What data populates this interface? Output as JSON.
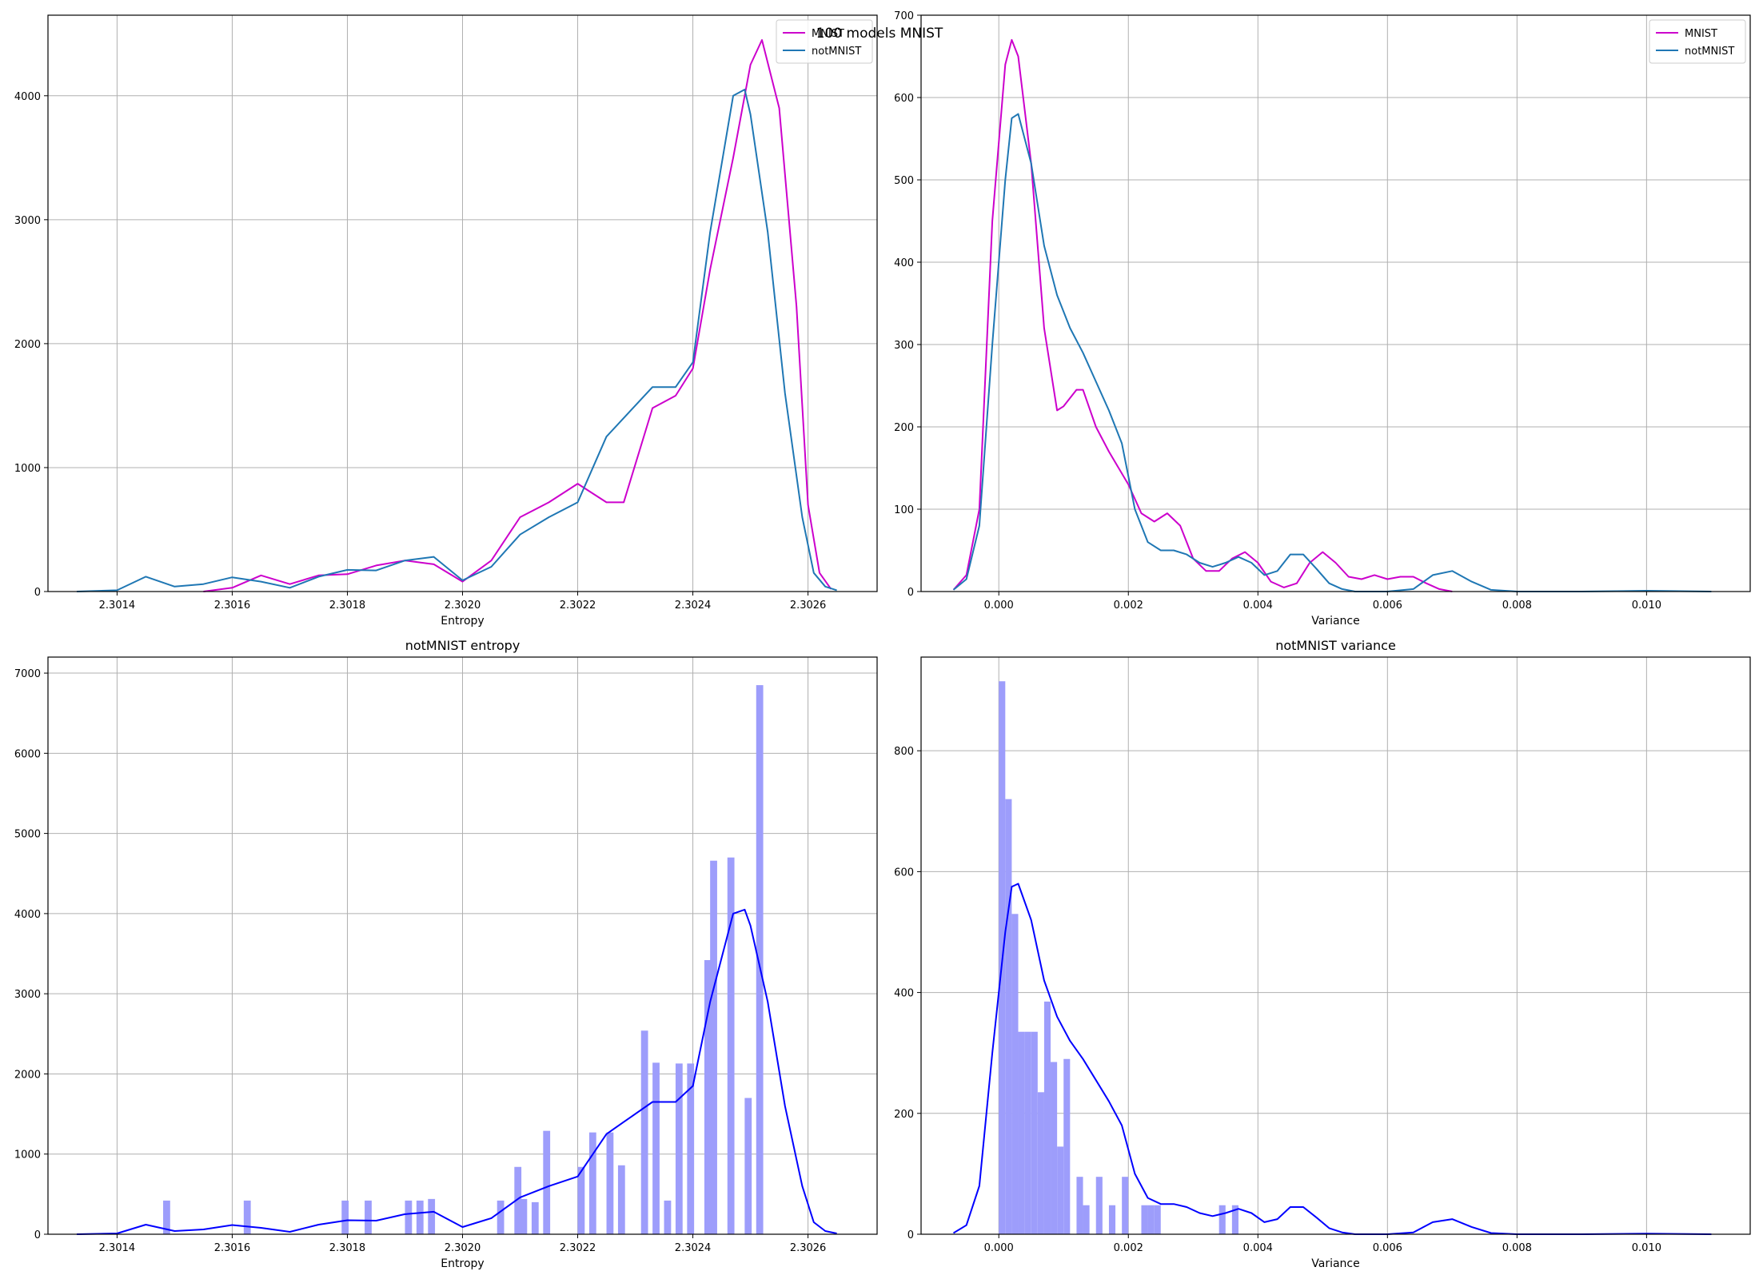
{
  "suptitle": "100 models MNIST",
  "colors": {
    "mnist_line": "#cc00cc",
    "notmnist_line": "#1f77b4",
    "kde_line": "#0000ff",
    "hist_fill": "#9d9dfb",
    "grid": "#b0b0b0"
  },
  "chart_data": [
    {
      "id": "entropy_kde",
      "type": "line",
      "title": "",
      "xlabel": "Entropy",
      "ylabel": "",
      "xlim": [
        2.30128,
        2.30272
      ],
      "ylim": [
        0,
        4650
      ],
      "xticks": [
        2.3014,
        2.3016,
        2.3018,
        2.302,
        2.3022,
        2.3024,
        2.3026
      ],
      "xtick_labels": [
        "2.3014",
        "2.3016",
        "2.3018",
        "2.3020",
        "2.3022",
        "2.3024",
        "2.3026"
      ],
      "yticks": [
        0,
        1000,
        2000,
        3000,
        4000
      ],
      "ytick_labels": [
        "0",
        "1000",
        "2000",
        "3000",
        "4000"
      ],
      "grid": true,
      "legend": "top-right",
      "series": [
        {
          "name": "MNIST",
          "color": "#cc00cc",
          "x": [
            2.30155,
            2.3016,
            2.30165,
            2.3017,
            2.30175,
            2.3018,
            2.30185,
            2.3019,
            2.30195,
            2.302,
            2.30205,
            2.3021,
            2.30215,
            2.3022,
            2.30225,
            2.30228,
            2.30233,
            2.30237,
            2.3024,
            2.30243,
            2.30247,
            2.3025,
            2.30252,
            2.30255,
            2.30258,
            2.3026,
            2.30262,
            2.30264
          ],
          "y": [
            0,
            30,
            130,
            60,
            130,
            140,
            210,
            250,
            220,
            80,
            250,
            600,
            720,
            870,
            720,
            720,
            1480,
            1580,
            1800,
            2600,
            3500,
            4250,
            4450,
            3900,
            2300,
            700,
            150,
            20
          ]
        },
        {
          "name": "notMNIST",
          "color": "#1f77b4",
          "x": [
            2.30133,
            2.3014,
            2.30145,
            2.3015,
            2.30155,
            2.3016,
            2.30165,
            2.3017,
            2.30175,
            2.3018,
            2.30185,
            2.3019,
            2.30195,
            2.302,
            2.30205,
            2.3021,
            2.30215,
            2.3022,
            2.30225,
            2.30228,
            2.30233,
            2.30237,
            2.3024,
            2.30243,
            2.30247,
            2.30249,
            2.3025,
            2.30253,
            2.30256,
            2.30259,
            2.30261,
            2.30263,
            2.30265
          ],
          "y": [
            0,
            10,
            120,
            40,
            60,
            115,
            80,
            30,
            120,
            175,
            170,
            250,
            280,
            90,
            200,
            460,
            600,
            720,
            1250,
            1400,
            1650,
            1650,
            1850,
            2900,
            4000,
            4050,
            3850,
            2900,
            1600,
            600,
            150,
            40,
            10
          ]
        }
      ]
    },
    {
      "id": "variance_kde",
      "type": "line",
      "title": "",
      "xlabel": "Variance",
      "ylabel": "",
      "xlim": [
        -0.0012,
        0.0116
      ],
      "ylim": [
        0,
        700
      ],
      "xticks": [
        0,
        0.002,
        0.004,
        0.006,
        0.008,
        0.01
      ],
      "xtick_labels": [
        "0.000",
        "0.002",
        "0.004",
        "0.006",
        "0.008",
        "0.010"
      ],
      "yticks": [
        0,
        100,
        200,
        300,
        400,
        500,
        600,
        700
      ],
      "ytick_labels": [
        "0",
        "100",
        "200",
        "300",
        "400",
        "500",
        "600",
        "700"
      ],
      "grid": true,
      "legend": "top-right",
      "series": [
        {
          "name": "MNIST",
          "color": "#cc00cc",
          "x": [
            -0.0007,
            -0.0005,
            -0.0003,
            -0.0001,
            0.0001,
            0.0002,
            0.0003,
            0.0005,
            0.0007,
            0.0009,
            0.001,
            0.0012,
            0.0013,
            0.0015,
            0.0017,
            0.002,
            0.0022,
            0.0024,
            0.0026,
            0.0028,
            0.003,
            0.0032,
            0.0034,
            0.0036,
            0.0038,
            0.004,
            0.0042,
            0.0044,
            0.0046,
            0.0048,
            0.005,
            0.0052,
            0.0054,
            0.0056,
            0.0058,
            0.006,
            0.0062,
            0.0064,
            0.0066,
            0.0068,
            0.007
          ],
          "y": [
            2,
            20,
            100,
            450,
            640,
            670,
            650,
            520,
            320,
            220,
            225,
            245,
            245,
            200,
            170,
            130,
            95,
            85,
            95,
            80,
            40,
            25,
            25,
            40,
            48,
            35,
            12,
            5,
            10,
            35,
            48,
            35,
            18,
            15,
            20,
            15,
            18,
            18,
            10,
            3,
            0
          ]
        },
        {
          "name": "notMNIST",
          "color": "#1f77b4",
          "x": [
            -0.0007,
            -0.0005,
            -0.0003,
            -0.0001,
            0.0001,
            0.0002,
            0.0003,
            0.0005,
            0.0007,
            0.0009,
            0.0011,
            0.0013,
            0.0015,
            0.0017,
            0.0019,
            0.0021,
            0.0023,
            0.0025,
            0.0027,
            0.0029,
            0.0031,
            0.0033,
            0.0035,
            0.0037,
            0.0039,
            0.0041,
            0.0043,
            0.0045,
            0.0047,
            0.0049,
            0.0051,
            0.0053,
            0.0055,
            0.006,
            0.0064,
            0.0067,
            0.007,
            0.0073,
            0.0076,
            0.008,
            0.009,
            0.01,
            0.011
          ],
          "y": [
            2,
            15,
            80,
            300,
            500,
            575,
            580,
            520,
            420,
            360,
            320,
            290,
            255,
            220,
            180,
            100,
            60,
            50,
            50,
            45,
            35,
            30,
            35,
            42,
            35,
            20,
            25,
            45,
            45,
            28,
            10,
            3,
            0,
            0,
            3,
            20,
            25,
            12,
            2,
            0,
            0,
            1,
            0
          ]
        }
      ]
    },
    {
      "id": "notmnist_entropy",
      "type": "bar",
      "title": "notMNIST entropy",
      "xlabel": "Entropy",
      "ylabel": "",
      "xlim": [
        2.30128,
        2.30272
      ],
      "ylim": [
        0,
        7200
      ],
      "xticks": [
        2.3014,
        2.3016,
        2.3018,
        2.302,
        2.3022,
        2.3024,
        2.3026
      ],
      "xtick_labels": [
        "2.3014",
        "2.3016",
        "2.3018",
        "2.3020",
        "2.3022",
        "2.3024",
        "2.3026"
      ],
      "yticks": [
        0,
        1000,
        2000,
        3000,
        4000,
        5000,
        6000,
        7000
      ],
      "ytick_labels": [
        "0",
        "1000",
        "2000",
        "3000",
        "4000",
        "5000",
        "6000",
        "7000"
      ],
      "grid": true,
      "bin_width": 1.22e-05,
      "bins": [
        {
          "x": 2.30148,
          "value": 420
        },
        {
          "x": 2.30162,
          "value": 420
        },
        {
          "x": 2.30179,
          "value": 420
        },
        {
          "x": 2.30183,
          "value": 420
        },
        {
          "x": 2.3019,
          "value": 420
        },
        {
          "x": 2.30192,
          "value": 420
        },
        {
          "x": 2.30194,
          "value": 440
        },
        {
          "x": 2.30206,
          "value": 420
        },
        {
          "x": 2.30209,
          "value": 840
        },
        {
          "x": 2.3021,
          "value": 440
        },
        {
          "x": 2.30212,
          "value": 400
        },
        {
          "x": 2.30214,
          "value": 1290
        },
        {
          "x": 2.3022,
          "value": 840
        },
        {
          "x": 2.30222,
          "value": 1270
        },
        {
          "x": 2.30225,
          "value": 1270
        },
        {
          "x": 2.30227,
          "value": 860
        },
        {
          "x": 2.30231,
          "value": 2540
        },
        {
          "x": 2.30233,
          "value": 2140
        },
        {
          "x": 2.30235,
          "value": 420
        },
        {
          "x": 2.30237,
          "value": 2130
        },
        {
          "x": 2.30239,
          "value": 2130
        },
        {
          "x": 2.30242,
          "value": 3420
        },
        {
          "x": 2.30243,
          "value": 4660
        },
        {
          "x": 2.30246,
          "value": 4700
        },
        {
          "x": 2.30249,
          "value": 1700
        },
        {
          "x": 2.30251,
          "value": 6850
        }
      ],
      "series": [
        {
          "name": "",
          "color": "#0000ff",
          "x": [
            2.30133,
            2.3014,
            2.30145,
            2.3015,
            2.30155,
            2.3016,
            2.30165,
            2.3017,
            2.30175,
            2.3018,
            2.30185,
            2.3019,
            2.30195,
            2.302,
            2.30205,
            2.3021,
            2.30215,
            2.3022,
            2.30225,
            2.30228,
            2.30233,
            2.30237,
            2.3024,
            2.30243,
            2.30247,
            2.30249,
            2.3025,
            2.30253,
            2.30256,
            2.30259,
            2.30261,
            2.30263,
            2.30265
          ],
          "y": [
            0,
            10,
            120,
            40,
            60,
            115,
            80,
            30,
            120,
            175,
            170,
            250,
            280,
            90,
            200,
            460,
            600,
            720,
            1250,
            1400,
            1650,
            1650,
            1850,
            2900,
            4000,
            4050,
            3850,
            2900,
            1600,
            600,
            150,
            40,
            10
          ]
        }
      ]
    },
    {
      "id": "notmnist_variance",
      "type": "bar",
      "title": "notMNIST variance",
      "xlabel": "Variance",
      "ylabel": "",
      "xlim": [
        -0.0012,
        0.0116
      ],
      "ylim": [
        0,
        955
      ],
      "xticks": [
        0,
        0.002,
        0.004,
        0.006,
        0.008,
        0.01
      ],
      "xtick_labels": [
        "0.000",
        "0.002",
        "0.004",
        "0.006",
        "0.008",
        "0.010"
      ],
      "yticks": [
        0,
        200,
        400,
        600,
        800
      ],
      "ytick_labels": [
        "0",
        "200",
        "400",
        "600",
        "800"
      ],
      "grid": true,
      "bin_width": 0.0001,
      "bins": [
        {
          "x": 0.0,
          "value": 915
        },
        {
          "x": 0.0001,
          "value": 720
        },
        {
          "x": 0.0002,
          "value": 530
        },
        {
          "x": 0.0003,
          "value": 335
        },
        {
          "x": 0.0004,
          "value": 335
        },
        {
          "x": 0.0005,
          "value": 335
        },
        {
          "x": 0.0006,
          "value": 235
        },
        {
          "x": 0.0007,
          "value": 385
        },
        {
          "x": 0.0008,
          "value": 285
        },
        {
          "x": 0.0009,
          "value": 145
        },
        {
          "x": 0.001,
          "value": 290
        },
        {
          "x": 0.0011,
          "value": 0
        },
        {
          "x": 0.0012,
          "value": 95
        },
        {
          "x": 0.0013,
          "value": 48
        },
        {
          "x": 0.0014,
          "value": 0
        },
        {
          "x": 0.0015,
          "value": 95
        },
        {
          "x": 0.0016,
          "value": 0
        },
        {
          "x": 0.0017,
          "value": 48
        },
        {
          "x": 0.0018,
          "value": 0
        },
        {
          "x": 0.0019,
          "value": 95
        },
        {
          "x": 0.002,
          "value": 0
        },
        {
          "x": 0.0021,
          "value": 0
        },
        {
          "x": 0.0022,
          "value": 48
        },
        {
          "x": 0.0023,
          "value": 48
        },
        {
          "x": 0.0024,
          "value": 48
        },
        {
          "x": 0.0034,
          "value": 48
        },
        {
          "x": 0.0036,
          "value": 48
        }
      ],
      "series": [
        {
          "name": "",
          "color": "#0000ff",
          "x": [
            -0.0007,
            -0.0005,
            -0.0003,
            -0.0001,
            0.0001,
            0.0002,
            0.0003,
            0.0005,
            0.0007,
            0.0009,
            0.0011,
            0.0013,
            0.0015,
            0.0017,
            0.0019,
            0.0021,
            0.0023,
            0.0025,
            0.0027,
            0.0029,
            0.0031,
            0.0033,
            0.0035,
            0.0037,
            0.0039,
            0.0041,
            0.0043,
            0.0045,
            0.0047,
            0.0049,
            0.0051,
            0.0053,
            0.0055,
            0.006,
            0.0064,
            0.0067,
            0.007,
            0.0073,
            0.0076,
            0.008,
            0.009,
            0.01,
            0.011
          ],
          "y": [
            2,
            15,
            80,
            300,
            500,
            575,
            580,
            520,
            420,
            360,
            320,
            290,
            255,
            220,
            180,
            100,
            60,
            50,
            50,
            45,
            35,
            30,
            35,
            42,
            35,
            20,
            25,
            45,
            45,
            28,
            10,
            3,
            0,
            0,
            3,
            20,
            25,
            12,
            2,
            0,
            0,
            1,
            0
          ]
        }
      ]
    }
  ]
}
